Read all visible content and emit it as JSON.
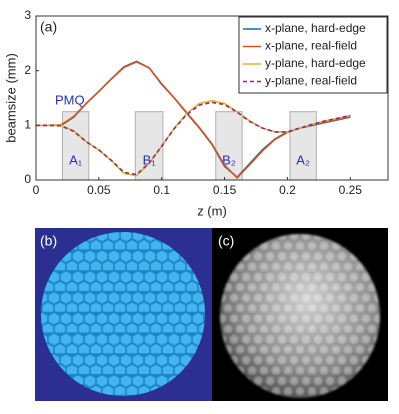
{
  "chart_data": {
    "type": "line",
    "panel_label": "(a)",
    "xlabel": "z (m)",
    "ylabel": "beamsize (mm)",
    "x": [
      0,
      0.01,
      0.02,
      0.03,
      0.04,
      0.05,
      0.06,
      0.07,
      0.08,
      0.09,
      0.1,
      0.11,
      0.12,
      0.13,
      0.14,
      0.15,
      0.16,
      0.17,
      0.18,
      0.19,
      0.2,
      0.21,
      0.22,
      0.23,
      0.24,
      0.25
    ],
    "series": [
      {
        "name": "x-plane, hard-edge",
        "color": "#0072bd",
        "dash": false,
        "values": [
          1,
          1,
          1,
          1.15,
          1.4,
          1.62,
          1.85,
          2.07,
          2.17,
          2.05,
          1.75,
          1.5,
          1.22,
          0.95,
          0.65,
          0.25,
          0.05,
          0.3,
          0.55,
          0.75,
          0.88,
          0.95,
          1.0,
          1.05,
          1.1,
          1.15
        ]
      },
      {
        "name": "x-plane, real-field",
        "color": "#d95319",
        "dash": false,
        "values": [
          1,
          1,
          1.01,
          1.16,
          1.4,
          1.62,
          1.85,
          2.06,
          2.16,
          2.05,
          1.76,
          1.5,
          1.23,
          0.96,
          0.66,
          0.27,
          0.04,
          0.28,
          0.53,
          0.74,
          0.87,
          0.95,
          1.01,
          1.06,
          1.11,
          1.16
        ]
      },
      {
        "name": "y-plane, hard-edge",
        "color": "#edb120",
        "dash": false,
        "values": [
          1,
          1,
          1,
          0.9,
          0.7,
          0.55,
          0.35,
          0.12,
          0.08,
          0.3,
          0.62,
          0.95,
          1.22,
          1.4,
          1.45,
          1.4,
          1.25,
          1.08,
          0.95,
          0.88,
          0.88,
          0.95,
          1.02,
          1.08,
          1.13,
          1.18
        ]
      },
      {
        "name": "y-plane, real-field",
        "color": "#7e2f8e",
        "dash": true,
        "values": [
          1,
          1,
          0.99,
          0.89,
          0.7,
          0.55,
          0.36,
          0.14,
          0.1,
          0.31,
          0.62,
          0.94,
          1.2,
          1.37,
          1.42,
          1.38,
          1.24,
          1.07,
          0.95,
          0.88,
          0.88,
          0.95,
          1.02,
          1.08,
          1.13,
          1.18
        ]
      }
    ],
    "xlim": [
      0,
      0.28
    ],
    "ylim": [
      0,
      3
    ],
    "xticks": [
      0,
      0.05,
      0.1,
      0.15,
      0.2,
      0.25
    ],
    "yticks": [
      0,
      1,
      2,
      3
    ],
    "annotation": "PMQ",
    "magnets": [
      {
        "label": "A₁",
        "range": [
          0.021,
          0.042
        ],
        "height": 1.25
      },
      {
        "label": "B₁",
        "range": [
          0.079,
          0.101
        ],
        "height": 1.25
      },
      {
        "label": "B₂",
        "range": [
          0.143,
          0.164
        ],
        "height": 1.25
      },
      {
        "label": "A₂",
        "range": [
          0.202,
          0.223
        ],
        "height": 1.25
      }
    ]
  },
  "panels": [
    {
      "label": "(b)"
    },
    {
      "label": "(c)"
    }
  ]
}
